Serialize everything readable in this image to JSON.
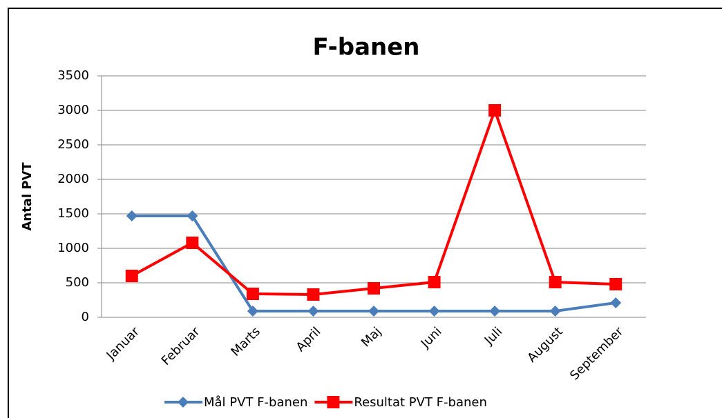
{
  "chart_data": {
    "type": "line",
    "title": "F-banen",
    "y_label": "Antal PVT",
    "categories": [
      "Januar",
      "Februar",
      "Marts",
      "April",
      "Maj",
      "Juni",
      "Juli",
      "August",
      "September"
    ],
    "series": [
      {
        "name": "Mål PVT F-banen",
        "color": "#4a7ebb",
        "marker": "diamond",
        "values": [
          1470,
          1470,
          90,
          90,
          90,
          90,
          90,
          90,
          210
        ]
      },
      {
        "name": "Resultat PVT F-banen",
        "color": "#ff0000",
        "marker": "square",
        "values": [
          600,
          1080,
          340,
          330,
          420,
          510,
          3000,
          510,
          480
        ]
      }
    ],
    "ylim": [
      0,
      3500
    ],
    "yticks": [
      0,
      500,
      1000,
      1500,
      2000,
      2500,
      3000,
      3500
    ],
    "grid": true
  }
}
